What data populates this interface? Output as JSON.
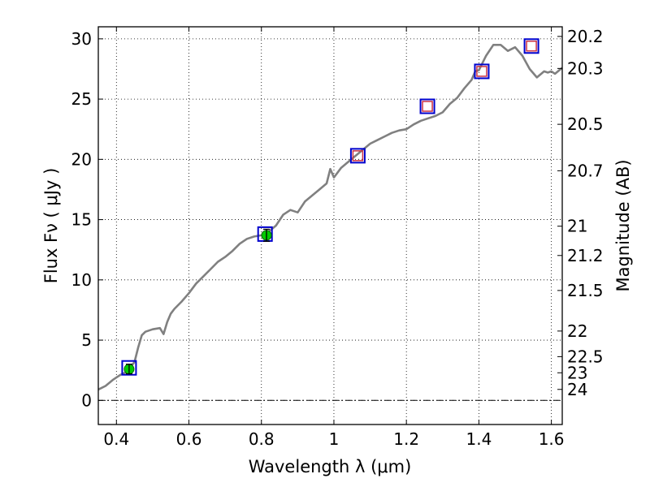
{
  "chart_data": {
    "type": "line",
    "xlabel": "Wavelength  λ (μm)",
    "ylabel": "Flux  Fν  ( μJy )",
    "ylabel_right": "Magnitude (AB)",
    "xlim": [
      0.35,
      1.63
    ],
    "ylim": [
      -2,
      31
    ],
    "grid": true,
    "x_ticks": [
      0.4,
      0.6,
      0.8,
      1.0,
      1.2,
      1.4,
      1.6
    ],
    "x_tick_labels": [
      "0.4",
      "0.6",
      "0.8",
      "1",
      "1.2",
      "1.4",
      "1.6"
    ],
    "y_ticks": [
      0,
      5,
      10,
      15,
      20,
      25,
      30
    ],
    "y_tick_labels": [
      "0",
      "5",
      "10",
      "15",
      "20",
      "25",
      "30"
    ],
    "right_axis_labels": [
      "20.2",
      "20.3",
      "20.5",
      "20.7",
      "21",
      "21.2",
      "21.5",
      "22",
      "22.5",
      "23",
      "24"
    ],
    "zero_line_style": "dash-dot",
    "series": [
      {
        "color": "#808080",
        "x": [
          0.35,
          0.37,
          0.39,
          0.41,
          0.43,
          0.45,
          0.46,
          0.47,
          0.48,
          0.5,
          0.52,
          0.53,
          0.54,
          0.55,
          0.56,
          0.58,
          0.6,
          0.62,
          0.64,
          0.66,
          0.68,
          0.7,
          0.72,
          0.74,
          0.76,
          0.78,
          0.8,
          0.82,
          0.84,
          0.86,
          0.88,
          0.9,
          0.92,
          0.94,
          0.96,
          0.98,
          0.99,
          1.0,
          1.02,
          1.04,
          1.06,
          1.08,
          1.1,
          1.12,
          1.14,
          1.16,
          1.18,
          1.2,
          1.22,
          1.24,
          1.26,
          1.28,
          1.3,
          1.32,
          1.34,
          1.36,
          1.38,
          1.39,
          1.4,
          1.42,
          1.44,
          1.46,
          1.48,
          1.5,
          1.52,
          1.54,
          1.56,
          1.58,
          1.59,
          1.6,
          1.61,
          1.63
        ],
        "y": [
          0.9,
          1.2,
          1.7,
          2.1,
          2.4,
          3.2,
          4.4,
          5.4,
          5.7,
          5.9,
          6.0,
          5.5,
          6.5,
          7.2,
          7.6,
          8.2,
          8.9,
          9.7,
          10.3,
          10.9,
          11.5,
          11.9,
          12.4,
          13.0,
          13.4,
          13.6,
          13.7,
          14.0,
          14.5,
          15.4,
          15.8,
          15.6,
          16.5,
          17.0,
          17.5,
          18.0,
          19.2,
          18.5,
          19.3,
          19.8,
          20.3,
          20.8,
          21.3,
          21.6,
          21.9,
          22.2,
          22.4,
          22.5,
          22.9,
          23.2,
          23.4,
          23.6,
          23.9,
          24.6,
          25.1,
          25.9,
          26.6,
          27.3,
          27.4,
          28.6,
          29.5,
          29.5,
          29.0,
          29.3,
          28.6,
          27.5,
          26.8,
          27.3,
          27.2,
          27.3,
          27.1,
          27.6
        ]
      }
    ],
    "photometry_points": [
      {
        "x": 0.435,
        "y": 2.6,
        "err": 0.4,
        "color": "#00cc00"
      },
      {
        "x": 0.814,
        "y": 13.7,
        "err": 0.5,
        "color": "#00cc00"
      }
    ],
    "model_boxes": [
      {
        "x": 0.435,
        "y": 2.7,
        "inner": false
      },
      {
        "x": 0.81,
        "y": 13.8,
        "inner": false
      },
      {
        "x": 1.066,
        "y": 20.3,
        "inner": true
      },
      {
        "x": 1.258,
        "y": 24.4,
        "inner": true
      },
      {
        "x": 1.408,
        "y": 27.3,
        "inner": true
      },
      {
        "x": 1.545,
        "y": 29.4,
        "inner": true
      }
    ],
    "colors": {
      "box_outer": "#0000cc",
      "box_inner": "#cc3344",
      "spectrum": "#808080",
      "grid": "#000000"
    }
  }
}
